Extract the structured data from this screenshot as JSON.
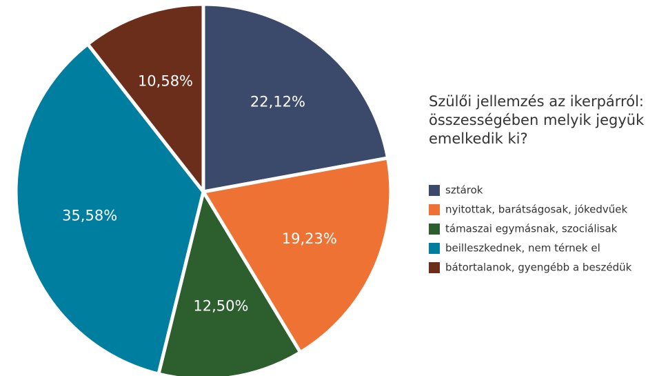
{
  "chart_data": {
    "type": "pie",
    "title": "Szülői jellemzés az ikerpárról: összességében melyik jegyük emelkedik ki?",
    "categories": [
      "sztárok",
      "nyitottak, barátságosak, jókedvűek",
      "támaszai egymásnak, szociálisak",
      "beilleszkednek, nem térnek el",
      "bátortalanok, gyengébb a beszédük"
    ],
    "values": [
      22.12,
      19.23,
      12.5,
      35.58,
      10.58
    ],
    "value_labels": [
      "22,12%",
      "19,23%",
      "12,50%",
      "35,58%",
      "10,58%"
    ],
    "colors": [
      "#3b4a6b",
      "#ed7233",
      "#2d5e2e",
      "#007ea0",
      "#6b2e1a"
    ]
  }
}
